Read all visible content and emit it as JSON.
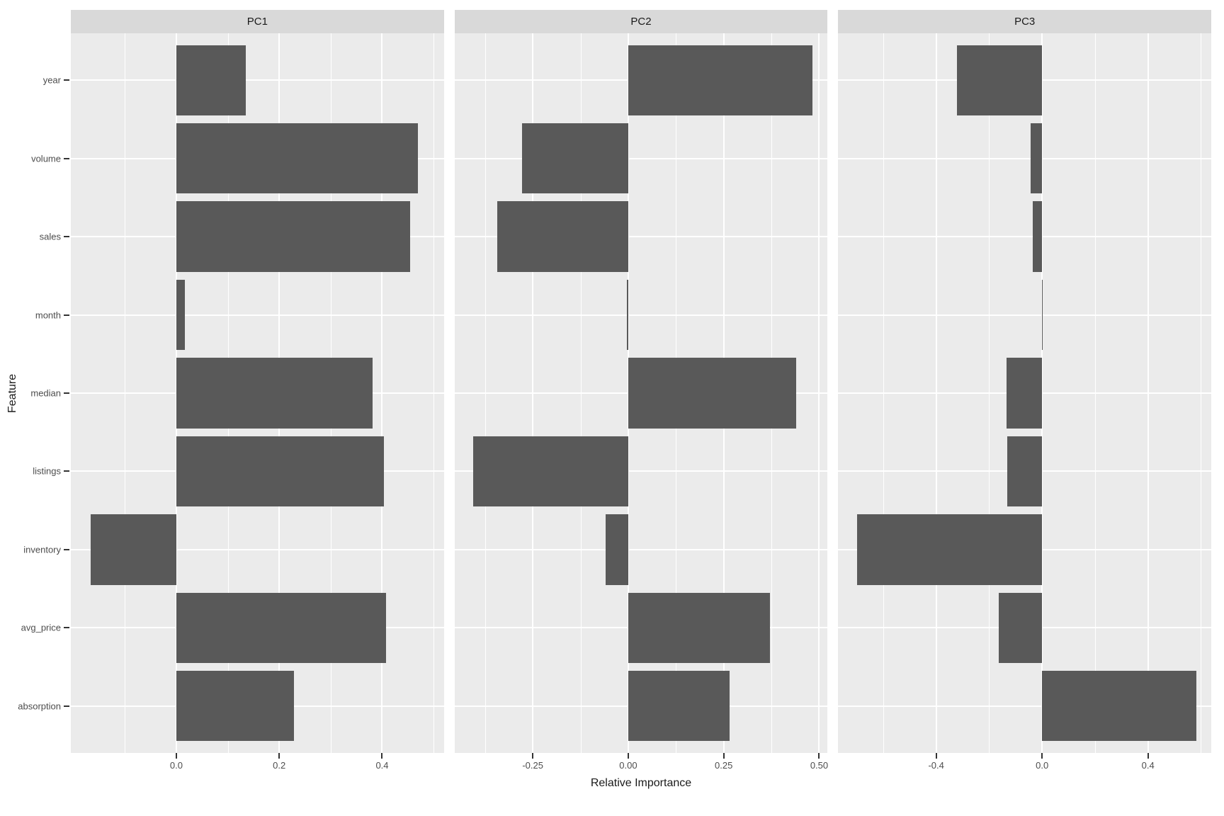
{
  "axes": {
    "x_title": "Relative Importance",
    "y_title": "Feature"
  },
  "chart_data": {
    "type": "bar",
    "orientation": "horizontal",
    "facets": [
      "PC1",
      "PC2",
      "PC3"
    ],
    "categories_top_to_bottom": [
      "year",
      "volume",
      "sales",
      "month",
      "median",
      "listings",
      "inventory",
      "avg_price",
      "absorption"
    ],
    "xlabel": "Relative Importance",
    "ylabel": "Feature",
    "grid": "on",
    "legend": "none",
    "panels": [
      {
        "label": "PC1",
        "xlim": [
          -0.205,
          0.52
        ],
        "major_ticks": [
          0.0,
          0.2,
          0.4
        ],
        "tick_labels": [
          "0.0",
          "0.2",
          "0.4"
        ],
        "minor_ticks": [
          -0.1,
          0.1,
          0.3,
          0.5
        ],
        "values": [
          0.135,
          0.47,
          0.455,
          0.016,
          0.382,
          0.404,
          -0.167,
          0.407,
          0.228
        ]
      },
      {
        "label": "PC2",
        "xlim": [
          -0.455,
          0.522
        ],
        "major_ticks": [
          -0.25,
          0.0,
          0.25,
          0.5
        ],
        "tick_labels": [
          "-0.25",
          "0.00",
          "0.25",
          "0.50"
        ],
        "minor_ticks": [
          -0.375,
          -0.125,
          0.125,
          0.375
        ],
        "values": [
          0.483,
          -0.278,
          -0.344,
          -0.003,
          0.439,
          -0.407,
          -0.059,
          0.372,
          0.265
        ]
      },
      {
        "label": "PC3",
        "xlim": [
          -0.77,
          0.639
        ],
        "major_ticks": [
          -0.4,
          0.0,
          0.4
        ],
        "tick_labels": [
          "-0.4",
          "0.0",
          "0.4"
        ],
        "minor_ticks": [
          -0.6,
          -0.2,
          0.2,
          0.6
        ],
        "values": [
          -0.321,
          -0.042,
          -0.034,
          0.002,
          -0.133,
          -0.132,
          -0.698,
          -0.163,
          0.583
        ]
      }
    ],
    "colors": {
      "bar_fill": "#595959",
      "panel_bg": "#EBEBEB",
      "strip_bg": "#D9D9D9",
      "gridline": "#FFFFFF",
      "tick_mark": "#333333",
      "axis_text": "#4D4D4D",
      "title_text": "#1A1A1A",
      "page_bg": "#FFFFFF"
    }
  }
}
